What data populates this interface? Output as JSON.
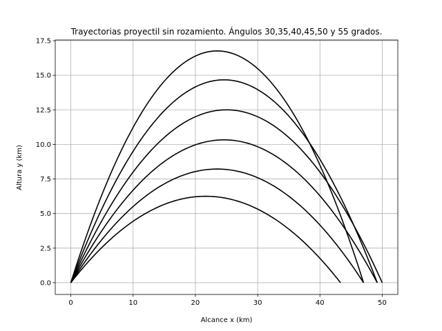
{
  "chart_data": {
    "type": "line",
    "title": "Trayectorias proyectil sin rozamiento. Ángulos 30,35,40,45,50 y 55 grados.",
    "xlabel": "Alcance x (km)",
    "ylabel": "Altura y (km)",
    "xlim": [
      -2.5,
      52.5
    ],
    "ylim": [
      -0.85,
      17.55
    ],
    "xticks": [
      0,
      10,
      20,
      30,
      40,
      50
    ],
    "xtick_labels": [
      "0",
      "10",
      "20",
      "30",
      "40",
      "50"
    ],
    "yticks": [
      0,
      2.5,
      5,
      7.5,
      10,
      12.5,
      15,
      17.5
    ],
    "ytick_labels": [
      "0.0",
      "2.5",
      "5.0",
      "7.5",
      "10.0",
      "12.5",
      "15.0",
      "17.5"
    ],
    "grid": true,
    "line_color": "#000000",
    "series": [
      {
        "angle_deg": 30,
        "range": 43.3,
        "max_height": 6.25,
        "apex_x": 21.65
      },
      {
        "angle_deg": 35,
        "range": 47.0,
        "max_height": 8.22,
        "apex_x": 23.5
      },
      {
        "angle_deg": 40,
        "range": 49.2,
        "max_height": 10.33,
        "apex_x": 24.6
      },
      {
        "angle_deg": 45,
        "range": 50.0,
        "max_height": 12.5,
        "apex_x": 25.0
      },
      {
        "angle_deg": 50,
        "range": 49.2,
        "max_height": 14.67,
        "apex_x": 24.6
      },
      {
        "angle_deg": 55,
        "range": 47.0,
        "max_height": 16.76,
        "apex_x": 23.5
      }
    ]
  }
}
